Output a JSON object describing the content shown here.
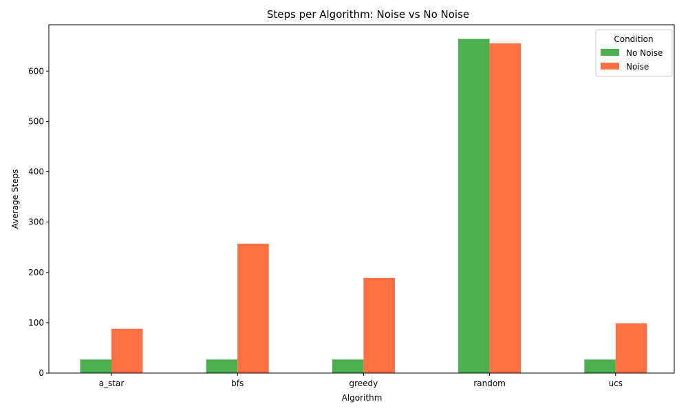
{
  "chart_data": {
    "type": "bar",
    "title": "Steps per Algorithm: Noise vs No Noise",
    "xlabel": "Algorithm",
    "ylabel": "Average Steps",
    "categories": [
      "a_star",
      "bfs",
      "greedy",
      "random",
      "ucs"
    ],
    "series": [
      {
        "name": "No Noise",
        "color": "#4caf50",
        "values": [
          27,
          27,
          27,
          664,
          27
        ]
      },
      {
        "name": "Noise",
        "color": "#ff7043",
        "values": [
          88,
          257,
          189,
          655,
          99
        ]
      }
    ],
    "ylim": [
      0,
      692
    ],
    "yticks": [
      0,
      100,
      200,
      300,
      400,
      500,
      600
    ],
    "grid": false,
    "legend": {
      "title": "Condition",
      "placement": "top-right"
    }
  }
}
